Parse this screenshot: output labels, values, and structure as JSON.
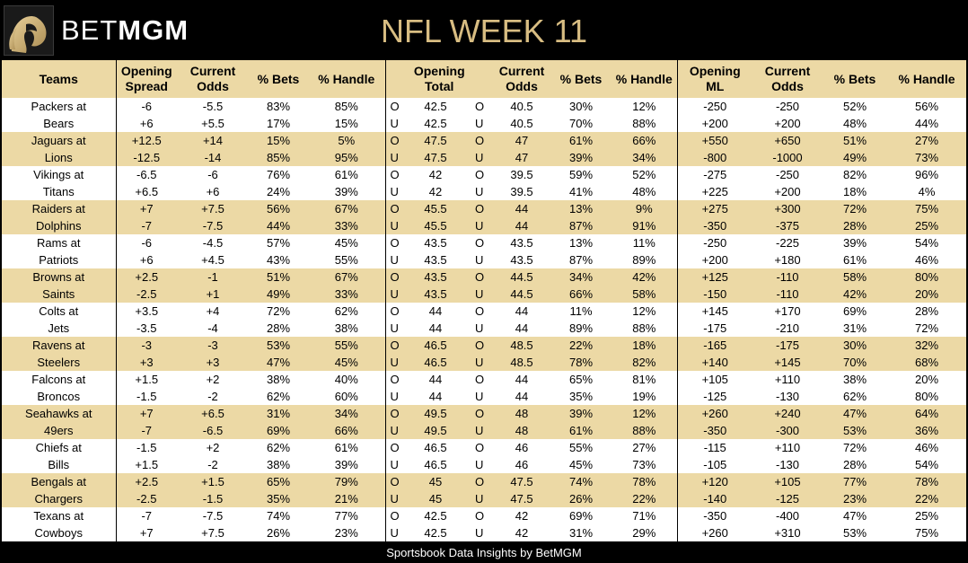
{
  "header": {
    "brand_light": "BET",
    "brand_bold": "MGM",
    "title": "NFL WEEK 11"
  },
  "columns": {
    "teams": "Teams",
    "opening_spread": [
      "Opening",
      "Spread"
    ],
    "current_odds": [
      "Current",
      "Odds"
    ],
    "pct_bets": "% Bets",
    "pct_handle": "% Handle",
    "opening_total": [
      "Opening",
      "Total"
    ],
    "opening_ml": [
      "Opening",
      "ML"
    ]
  },
  "rows": [
    {
      "team": "Packers at",
      "spread_open": "-6",
      "spread_cur": "-5.5",
      "spread_bets": "83%",
      "spread_handle": "85%",
      "ou_open": "O",
      "total_open": "42.5",
      "ou_cur": "O",
      "total_cur": "40.5",
      "total_bets": "30%",
      "total_handle": "12%",
      "ml_open": "-250",
      "ml_cur": "-250",
      "ml_bets": "52%",
      "ml_handle": "56%"
    },
    {
      "team": "Bears",
      "spread_open": "+6",
      "spread_cur": "+5.5",
      "spread_bets": "17%",
      "spread_handle": "15%",
      "ou_open": "U",
      "total_open": "42.5",
      "ou_cur": "U",
      "total_cur": "40.5",
      "total_bets": "70%",
      "total_handle": "88%",
      "ml_open": "+200",
      "ml_cur": "+200",
      "ml_bets": "48%",
      "ml_handle": "44%"
    },
    {
      "team": "Jaguars at",
      "spread_open": "+12.5",
      "spread_cur": "+14",
      "spread_bets": "15%",
      "spread_handle": "5%",
      "ou_open": "O",
      "total_open": "47.5",
      "ou_cur": "O",
      "total_cur": "47",
      "total_bets": "61%",
      "total_handle": "66%",
      "ml_open": "+550",
      "ml_cur": "+650",
      "ml_bets": "51%",
      "ml_handle": "27%"
    },
    {
      "team": "Lions",
      "spread_open": "-12.5",
      "spread_cur": "-14",
      "spread_bets": "85%",
      "spread_handle": "95%",
      "ou_open": "U",
      "total_open": "47.5",
      "ou_cur": "U",
      "total_cur": "47",
      "total_bets": "39%",
      "total_handle": "34%",
      "ml_open": "-800",
      "ml_cur": "-1000",
      "ml_bets": "49%",
      "ml_handle": "73%"
    },
    {
      "team": "Vikings at",
      "spread_open": "-6.5",
      "spread_cur": "-6",
      "spread_bets": "76%",
      "spread_handle": "61%",
      "ou_open": "O",
      "total_open": "42",
      "ou_cur": "O",
      "total_cur": "39.5",
      "total_bets": "59%",
      "total_handle": "52%",
      "ml_open": "-275",
      "ml_cur": "-250",
      "ml_bets": "82%",
      "ml_handle": "96%"
    },
    {
      "team": "Titans",
      "spread_open": "+6.5",
      "spread_cur": "+6",
      "spread_bets": "24%",
      "spread_handle": "39%",
      "ou_open": "U",
      "total_open": "42",
      "ou_cur": "U",
      "total_cur": "39.5",
      "total_bets": "41%",
      "total_handle": "48%",
      "ml_open": "+225",
      "ml_cur": "+200",
      "ml_bets": "18%",
      "ml_handle": "4%"
    },
    {
      "team": "Raiders at",
      "spread_open": "+7",
      "spread_cur": "+7.5",
      "spread_bets": "56%",
      "spread_handle": "67%",
      "ou_open": "O",
      "total_open": "45.5",
      "ou_cur": "O",
      "total_cur": "44",
      "total_bets": "13%",
      "total_handle": "9%",
      "ml_open": "+275",
      "ml_cur": "+300",
      "ml_bets": "72%",
      "ml_handle": "75%"
    },
    {
      "team": "Dolphins",
      "spread_open": "-7",
      "spread_cur": "-7.5",
      "spread_bets": "44%",
      "spread_handle": "33%",
      "ou_open": "U",
      "total_open": "45.5",
      "ou_cur": "U",
      "total_cur": "44",
      "total_bets": "87%",
      "total_handle": "91%",
      "ml_open": "-350",
      "ml_cur": "-375",
      "ml_bets": "28%",
      "ml_handle": "25%"
    },
    {
      "team": "Rams at",
      "spread_open": "-6",
      "spread_cur": "-4.5",
      "spread_bets": "57%",
      "spread_handle": "45%",
      "ou_open": "O",
      "total_open": "43.5",
      "ou_cur": "O",
      "total_cur": "43.5",
      "total_bets": "13%",
      "total_handle": "11%",
      "ml_open": "-250",
      "ml_cur": "-225",
      "ml_bets": "39%",
      "ml_handle": "54%"
    },
    {
      "team": "Patriots",
      "spread_open": "+6",
      "spread_cur": "+4.5",
      "spread_bets": "43%",
      "spread_handle": "55%",
      "ou_open": "U",
      "total_open": "43.5",
      "ou_cur": "U",
      "total_cur": "43.5",
      "total_bets": "87%",
      "total_handle": "89%",
      "ml_open": "+200",
      "ml_cur": "+180",
      "ml_bets": "61%",
      "ml_handle": "46%"
    },
    {
      "team": "Browns at",
      "spread_open": "+2.5",
      "spread_cur": "-1",
      "spread_bets": "51%",
      "spread_handle": "67%",
      "ou_open": "O",
      "total_open": "43.5",
      "ou_cur": "O",
      "total_cur": "44.5",
      "total_bets": "34%",
      "total_handle": "42%",
      "ml_open": "+125",
      "ml_cur": "-110",
      "ml_bets": "58%",
      "ml_handle": "80%"
    },
    {
      "team": "Saints",
      "spread_open": "-2.5",
      "spread_cur": "+1",
      "spread_bets": "49%",
      "spread_handle": "33%",
      "ou_open": "U",
      "total_open": "43.5",
      "ou_cur": "U",
      "total_cur": "44.5",
      "total_bets": "66%",
      "total_handle": "58%",
      "ml_open": "-150",
      "ml_cur": "-110",
      "ml_bets": "42%",
      "ml_handle": "20%"
    },
    {
      "team": "Colts at",
      "spread_open": "+3.5",
      "spread_cur": "+4",
      "spread_bets": "72%",
      "spread_handle": "62%",
      "ou_open": "O",
      "total_open": "44",
      "ou_cur": "O",
      "total_cur": "44",
      "total_bets": "11%",
      "total_handle": "12%",
      "ml_open": "+145",
      "ml_cur": "+170",
      "ml_bets": "69%",
      "ml_handle": "28%"
    },
    {
      "team": "Jets",
      "spread_open": "-3.5",
      "spread_cur": "-4",
      "spread_bets": "28%",
      "spread_handle": "38%",
      "ou_open": "U",
      "total_open": "44",
      "ou_cur": "U",
      "total_cur": "44",
      "total_bets": "89%",
      "total_handle": "88%",
      "ml_open": "-175",
      "ml_cur": "-210",
      "ml_bets": "31%",
      "ml_handle": "72%"
    },
    {
      "team": "Ravens at",
      "spread_open": "-3",
      "spread_cur": "-3",
      "spread_bets": "53%",
      "spread_handle": "55%",
      "ou_open": "O",
      "total_open": "46.5",
      "ou_cur": "O",
      "total_cur": "48.5",
      "total_bets": "22%",
      "total_handle": "18%",
      "ml_open": "-165",
      "ml_cur": "-175",
      "ml_bets": "30%",
      "ml_handle": "32%"
    },
    {
      "team": "Steelers",
      "spread_open": "+3",
      "spread_cur": "+3",
      "spread_bets": "47%",
      "spread_handle": "45%",
      "ou_open": "U",
      "total_open": "46.5",
      "ou_cur": "U",
      "total_cur": "48.5",
      "total_bets": "78%",
      "total_handle": "82%",
      "ml_open": "+140",
      "ml_cur": "+145",
      "ml_bets": "70%",
      "ml_handle": "68%"
    },
    {
      "team": "Falcons at",
      "spread_open": "+1.5",
      "spread_cur": "+2",
      "spread_bets": "38%",
      "spread_handle": "40%",
      "ou_open": "O",
      "total_open": "44",
      "ou_cur": "O",
      "total_cur": "44",
      "total_bets": "65%",
      "total_handle": "81%",
      "ml_open": "+105",
      "ml_cur": "+110",
      "ml_bets": "38%",
      "ml_handle": "20%"
    },
    {
      "team": "Broncos",
      "spread_open": "-1.5",
      "spread_cur": "-2",
      "spread_bets": "62%",
      "spread_handle": "60%",
      "ou_open": "U",
      "total_open": "44",
      "ou_cur": "U",
      "total_cur": "44",
      "total_bets": "35%",
      "total_handle": "19%",
      "ml_open": "-125",
      "ml_cur": "-130",
      "ml_bets": "62%",
      "ml_handle": "80%"
    },
    {
      "team": "Seahawks at",
      "spread_open": "+7",
      "spread_cur": "+6.5",
      "spread_bets": "31%",
      "spread_handle": "34%",
      "ou_open": "O",
      "total_open": "49.5",
      "ou_cur": "O",
      "total_cur": "48",
      "total_bets": "39%",
      "total_handle": "12%",
      "ml_open": "+260",
      "ml_cur": "+240",
      "ml_bets": "47%",
      "ml_handle": "64%"
    },
    {
      "team": "49ers",
      "spread_open": "-7",
      "spread_cur": "-6.5",
      "spread_bets": "69%",
      "spread_handle": "66%",
      "ou_open": "U",
      "total_open": "49.5",
      "ou_cur": "U",
      "total_cur": "48",
      "total_bets": "61%",
      "total_handle": "88%",
      "ml_open": "-350",
      "ml_cur": "-300",
      "ml_bets": "53%",
      "ml_handle": "36%"
    },
    {
      "team": "Chiefs at",
      "spread_open": "-1.5",
      "spread_cur": "+2",
      "spread_bets": "62%",
      "spread_handle": "61%",
      "ou_open": "O",
      "total_open": "46.5",
      "ou_cur": "O",
      "total_cur": "46",
      "total_bets": "55%",
      "total_handle": "27%",
      "ml_open": "-115",
      "ml_cur": "+110",
      "ml_bets": "72%",
      "ml_handle": "46%"
    },
    {
      "team": "Bills",
      "spread_open": "+1.5",
      "spread_cur": "-2",
      "spread_bets": "38%",
      "spread_handle": "39%",
      "ou_open": "U",
      "total_open": "46.5",
      "ou_cur": "U",
      "total_cur": "46",
      "total_bets": "45%",
      "total_handle": "73%",
      "ml_open": "-105",
      "ml_cur": "-130",
      "ml_bets": "28%",
      "ml_handle": "54%"
    },
    {
      "team": "Bengals at",
      "spread_open": "+2.5",
      "spread_cur": "+1.5",
      "spread_bets": "65%",
      "spread_handle": "79%",
      "ou_open": "O",
      "total_open": "45",
      "ou_cur": "O",
      "total_cur": "47.5",
      "total_bets": "74%",
      "total_handle": "78%",
      "ml_open": "+120",
      "ml_cur": "+105",
      "ml_bets": "77%",
      "ml_handle": "78%"
    },
    {
      "team": "Chargers",
      "spread_open": "-2.5",
      "spread_cur": "-1.5",
      "spread_bets": "35%",
      "spread_handle": "21%",
      "ou_open": "U",
      "total_open": "45",
      "ou_cur": "U",
      "total_cur": "47.5",
      "total_bets": "26%",
      "total_handle": "22%",
      "ml_open": "-140",
      "ml_cur": "-125",
      "ml_bets": "23%",
      "ml_handle": "22%"
    },
    {
      "team": "Texans at",
      "spread_open": "-7",
      "spread_cur": "-7.5",
      "spread_bets": "74%",
      "spread_handle": "77%",
      "ou_open": "O",
      "total_open": "42.5",
      "ou_cur": "O",
      "total_cur": "42",
      "total_bets": "69%",
      "total_handle": "71%",
      "ml_open": "-350",
      "ml_cur": "-400",
      "ml_bets": "47%",
      "ml_handle": "25%"
    },
    {
      "team": "Cowboys",
      "spread_open": "+7",
      "spread_cur": "+7.5",
      "spread_bets": "26%",
      "spread_handle": "23%",
      "ou_open": "U",
      "total_open": "42.5",
      "ou_cur": "U",
      "total_cur": "42",
      "total_bets": "31%",
      "total_handle": "29%",
      "ml_open": "+260",
      "ml_cur": "+310",
      "ml_bets": "53%",
      "ml_handle": "75%"
    }
  ],
  "footer": {
    "text": "Sportsbook Data Insights by BetMGM"
  },
  "colors": {
    "background": "#000000",
    "gold_band": "#ecd9a5",
    "title_gold": "#d8bd82",
    "white": "#ffffff"
  },
  "icons": {
    "logo": "lion-head-logo-icon"
  }
}
